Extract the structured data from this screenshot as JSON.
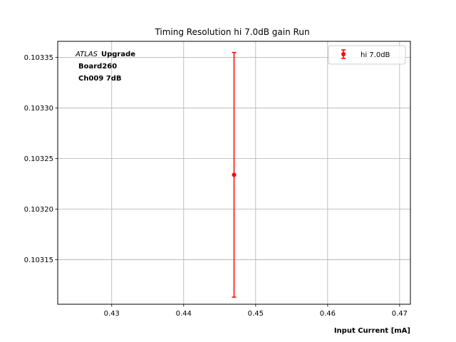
{
  "chart_data": {
    "type": "scatter",
    "title": "Timing Resolution hi 7.0dB gain Run",
    "xlabel": "Input Current [mA]",
    "ylabel": "",
    "xlim": [
      0.4225,
      0.4715
    ],
    "ylim": [
      0.103106,
      0.103366
    ],
    "x_ticks": [
      0.43,
      0.44,
      0.45,
      0.46,
      0.47
    ],
    "x_tick_labels": [
      "0.43",
      "0.44",
      "0.45",
      "0.46",
      "0.47"
    ],
    "y_ticks": [
      0.10315,
      0.1032,
      0.10325,
      0.1033,
      0.10335
    ],
    "y_tick_labels": [
      "0.10315",
      "0.10320",
      "0.10325",
      "0.10330",
      "0.10335"
    ],
    "grid": true,
    "legend_position": "top-right",
    "annotation": {
      "italic_part": "ATLAS",
      "bold_part": "Upgrade",
      "line2": "Board260",
      "line3": "Ch009 7dB"
    },
    "series": [
      {
        "name": "hi 7.0dB",
        "color": "#ff0000",
        "points": [
          {
            "x": 0.447,
            "y": 0.103234,
            "yerr": 0.000121
          }
        ]
      }
    ]
  }
}
